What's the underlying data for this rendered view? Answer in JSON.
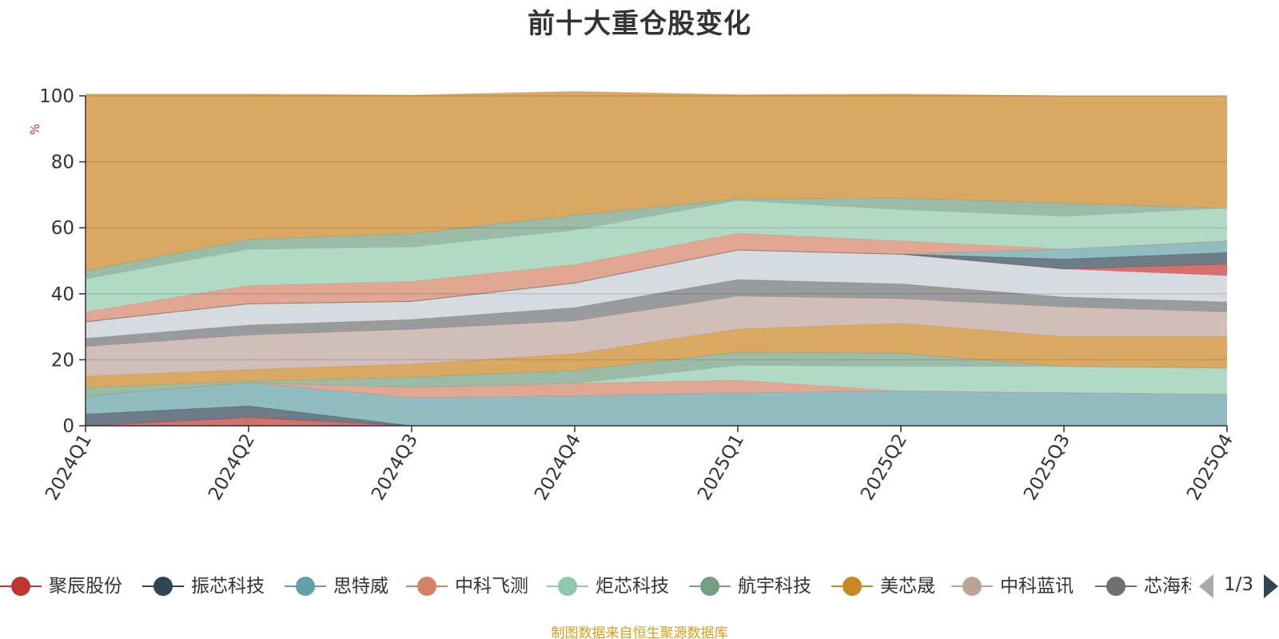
{
  "title": "前十大重仓股变化",
  "source_note": "制图数据来自恒生聚源数据库",
  "pager": {
    "text": "1/3"
  },
  "chart_data": {
    "type": "area",
    "stacked": true,
    "title": "前十大重仓股变化",
    "ylabel": "%",
    "ylim": [
      0,
      100
    ],
    "yticks": [
      0,
      20,
      40,
      60,
      80,
      100
    ],
    "grid": true,
    "legend_position": "bottom",
    "categories": [
      "2024Q1",
      "2024Q2",
      "2024Q3",
      "2024Q4",
      "2025Q1",
      "2025Q2",
      "2025Q3",
      "2025Q4"
    ],
    "series": [
      {
        "name": "聚辰股份",
        "color": "#c23531",
        "values": [
          0,
          2.5,
          0,
          0,
          0,
          0,
          0,
          0
        ]
      },
      {
        "name": "振芯科技",
        "color": "#2f4554",
        "values": [
          3.5,
          3.5,
          0,
          0,
          0,
          0,
          0,
          0
        ]
      },
      {
        "name": "思特威",
        "color": "#61a0a8",
        "values": [
          5.5,
          7,
          8.5,
          9,
          10,
          10.5,
          10,
          9.5
        ]
      },
      {
        "name": "中科飞测",
        "color": "#d48265",
        "values": [
          0,
          0,
          3.2,
          3.8,
          3.8,
          0,
          0,
          0
        ]
      },
      {
        "name": "炬芯科技",
        "color": "#91c7ae",
        "values": [
          0,
          0,
          0,
          0,
          4.5,
          7.5,
          8,
          8
        ]
      },
      {
        "name": "航宇科技",
        "color": "#749f83",
        "values": [
          2.5,
          0.5,
          3,
          4,
          4,
          4,
          0,
          0
        ]
      },
      {
        "name": "美芯晟",
        "color": "#ca8622",
        "values": [
          3.5,
          3.5,
          4,
          5,
          7,
          9,
          9,
          9.5
        ]
      },
      {
        "name": "中科蓝讯",
        "color": "#bda29a",
        "values": [
          9,
          10.5,
          10.5,
          10,
          10,
          7.5,
          9,
          7.5
        ]
      },
      {
        "name": "芯海科技",
        "color": "#6e7074",
        "values": [
          2.5,
          3,
          3,
          4,
          5,
          4.5,
          3,
          3
        ]
      },
      {
        "name": "",
        "color": "#c4ccd3",
        "values": [
          5,
          6.5,
          5.5,
          7.5,
          9,
          9,
          8.5,
          8
        ]
      },
      {
        "name": "",
        "color": "#c23531",
        "values": [
          0,
          0,
          0,
          0,
          0,
          0,
          0,
          3.5
        ]
      },
      {
        "name": "",
        "color": "#2f4554",
        "values": [
          0,
          0,
          0,
          0,
          0,
          0,
          3,
          3.5
        ]
      },
      {
        "name": "",
        "color": "#61a0a8",
        "values": [
          0,
          0,
          0,
          0,
          0,
          0,
          3,
          3.5
        ]
      },
      {
        "name": "",
        "color": "#d48265",
        "values": [
          3,
          5.5,
          6,
          5.5,
          5,
          4,
          0,
          0
        ]
      },
      {
        "name": "",
        "color": "#91c7ae",
        "values": [
          10,
          11,
          10.5,
          10.5,
          10,
          9.5,
          10,
          10
        ]
      },
      {
        "name": "",
        "color": "#749f83",
        "values": [
          2.5,
          3,
          4,
          4.5,
          0.5,
          3.5,
          4,
          0
        ]
      },
      {
        "name": "",
        "color": "#ca8622",
        "values": [
          53.5,
          44,
          42,
          37.5,
          31.5,
          31.5,
          32.5,
          34
        ]
      }
    ]
  }
}
